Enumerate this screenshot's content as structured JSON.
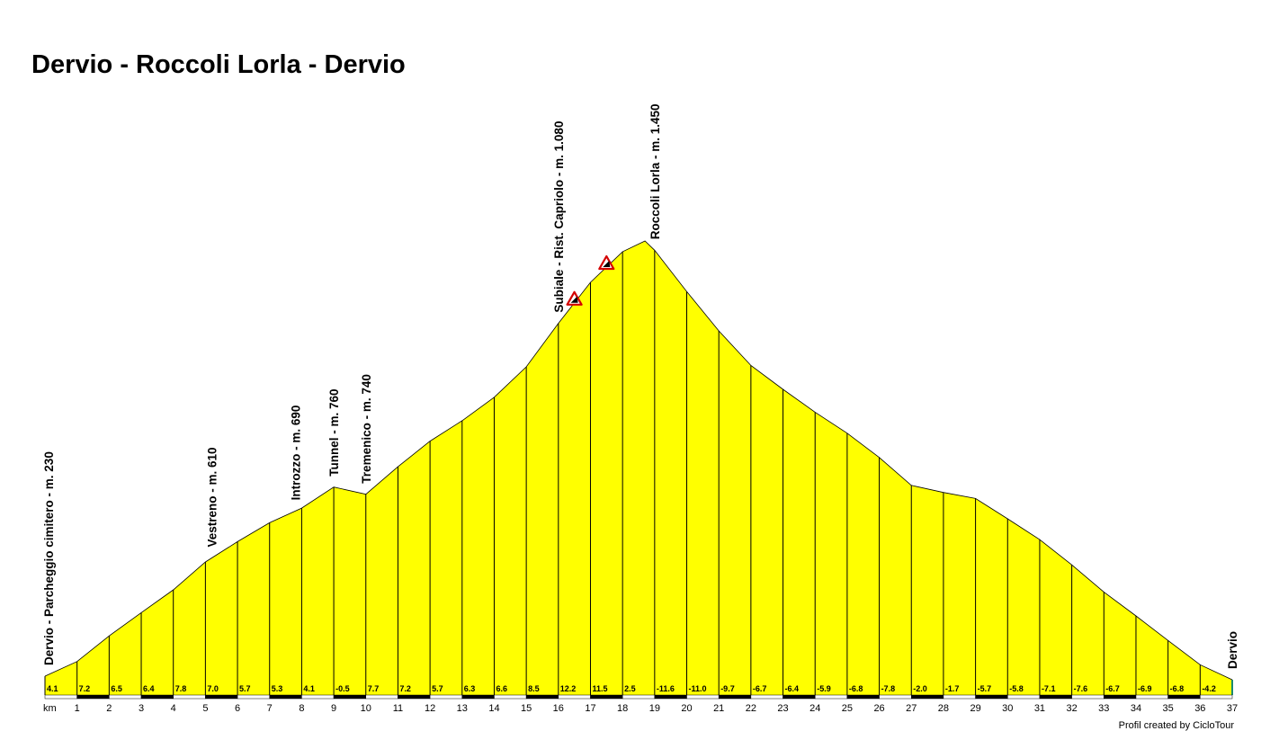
{
  "chart_data": {
    "type": "area",
    "title": "Dervio - Roccoli Lorla - Dervio",
    "xlabel": "km",
    "x_ticks": [
      1,
      2,
      3,
      4,
      5,
      6,
      7,
      8,
      9,
      10,
      11,
      12,
      13,
      14,
      15,
      16,
      17,
      18,
      19,
      20,
      21,
      22,
      23,
      24,
      25,
      26,
      27,
      28,
      29,
      30,
      31,
      32,
      33,
      34,
      35,
      36,
      37
    ],
    "xlim": [
      0,
      37
    ],
    "ylim": [
      230,
      1450
    ],
    "fill_color": "#ffff00",
    "profile": {
      "x": [
        0,
        1,
        2,
        3,
        4,
        5,
        6,
        7,
        8,
        9,
        10,
        11,
        12,
        13,
        14,
        15,
        16,
        17,
        18,
        18.7,
        19,
        20,
        21,
        22,
        23,
        24,
        25,
        26,
        27,
        28,
        29,
        30,
        31,
        32,
        33,
        34,
        35,
        36,
        37
      ],
      "elevation": [
        230,
        271,
        343,
        408,
        472,
        550,
        607,
        660,
        701,
        760,
        740,
        817,
        889,
        946,
        1012,
        1097,
        1219,
        1334,
        1420,
        1450,
        1424,
        1308,
        1198,
        1101,
        1034,
        970,
        911,
        843,
        765,
        745,
        728,
        671,
        613,
        542,
        466,
        399,
        330,
        262,
        220
      ]
    },
    "gradients": [
      "4.1",
      "7.2",
      "6.5",
      "6.4",
      "7.8",
      "7.0",
      "5.7",
      "5.3",
      "4.1",
      "-0.5",
      "7.7",
      "7.2",
      "5.7",
      "6.3",
      "6.6",
      "8.5",
      "12.2",
      "11.5",
      "2.5",
      "-11.6",
      "-11.0",
      "-9.7",
      "-6.7",
      "-6.4",
      "-5.9",
      "-6.8",
      "-7.8",
      "-2.0",
      "-1.7",
      "-5.7",
      "-5.8",
      "-7.1",
      "-7.6",
      "-6.7",
      "-6.9",
      "-6.8",
      "-4.2"
    ],
    "places": [
      {
        "km": 0,
        "label": "Dervio - Parcheggio cimitero - m. 230"
      },
      {
        "km": 5.2,
        "label": "Vestreno - m. 610"
      },
      {
        "km": 7.8,
        "label": "Introzzo - m. 690"
      },
      {
        "km": 9.0,
        "label": "Tunnel - m. 760"
      },
      {
        "km": 10.0,
        "label": "Tremenico - m. 740"
      },
      {
        "km": 16.0,
        "label": "Subiale - Rist. Capriolo - m. 1.080"
      },
      {
        "km": 19.0,
        "label": "Roccoli Lorla - m. 1.450"
      },
      {
        "km": 37,
        "label": "Dervio"
      }
    ],
    "warnings": [
      {
        "km": 16.5,
        "icon": "steep-gradient-warning-icon"
      },
      {
        "km": 17.5,
        "icon": "steep-gradient-warning-icon"
      }
    ]
  },
  "credit": "Profil created by CicloTour"
}
